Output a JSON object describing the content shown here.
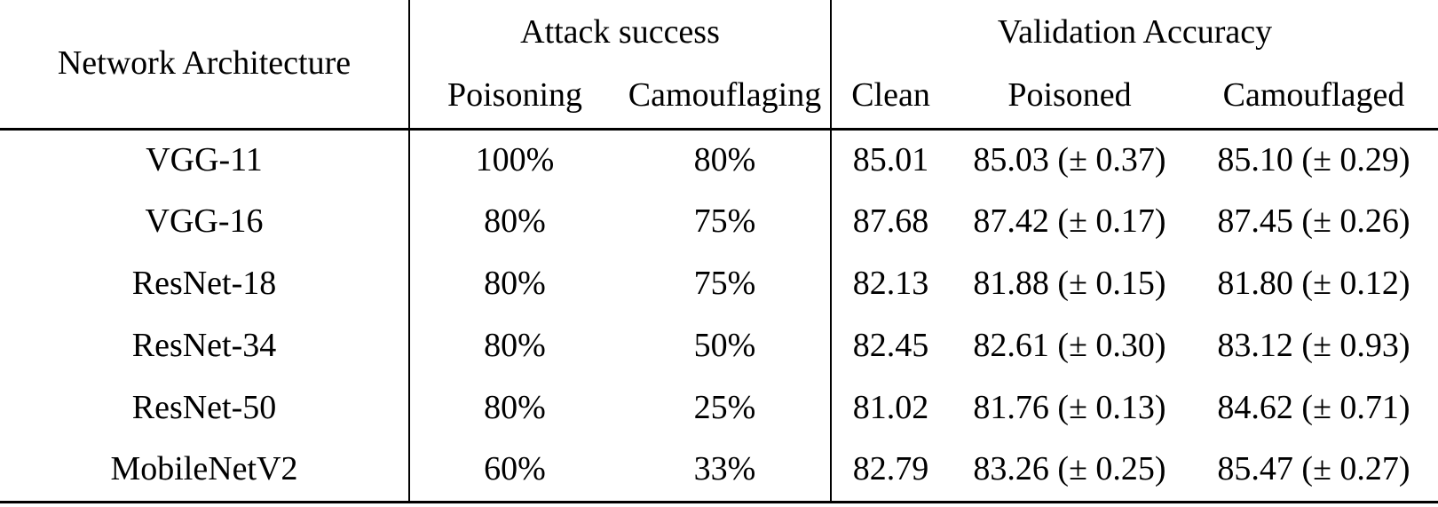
{
  "page": {
    "background": "#ffffff",
    "text_color": "#000000",
    "rule_color": "#000000"
  },
  "table": {
    "header": {
      "architecture": "Network Architecture",
      "attack_group": "Attack success",
      "validation_group": "Validation Accuracy",
      "sub": {
        "poisoning": "Poisoning",
        "camouflaging": "Camouflaging",
        "clean": "Clean",
        "poisoned": "Poisoned",
        "camouflaged": "Camouflaged"
      }
    },
    "rows": [
      {
        "architecture": "VGG-11",
        "poisoning": "100%",
        "camouflaging": "80%",
        "clean": "85.01",
        "poisoned": "85.03 (± 0.37)",
        "camouflaged": "85.10 (± 0.29)"
      },
      {
        "architecture": "VGG-16",
        "poisoning": "80%",
        "camouflaging": "75%",
        "clean": "87.68",
        "poisoned": "87.42 (± 0.17)",
        "camouflaged": "87.45 (± 0.26)"
      },
      {
        "architecture": "ResNet-18",
        "poisoning": "80%",
        "camouflaging": "75%",
        "clean": "82.13",
        "poisoned": "81.88 (± 0.15)",
        "camouflaged": "81.80 (± 0.12)"
      },
      {
        "architecture": "ResNet-34",
        "poisoning": "80%",
        "camouflaging": "50%",
        "clean": "82.45",
        "poisoned": "82.61 (± 0.30)",
        "camouflaged": "83.12 (± 0.93)"
      },
      {
        "architecture": "ResNet-50",
        "poisoning": "80%",
        "camouflaging": "25%",
        "clean": "81.02",
        "poisoned": "81.76 (± 0.13)",
        "camouflaged": "84.62 (± 0.71)"
      },
      {
        "architecture": "MobileNetV2",
        "poisoning": "60%",
        "camouflaging": "33%",
        "clean": "82.79",
        "poisoned": "83.26 (± 0.25)",
        "camouflaged": "85.47 (± 0.27)"
      }
    ]
  },
  "chart_data": {
    "type": "table",
    "columns": [
      "Network Architecture",
      "Attack success: Poisoning",
      "Attack success: Camouflaging",
      "Validation Accuracy: Clean",
      "Validation Accuracy: Poisoned",
      "Validation Accuracy: Camouflaged"
    ],
    "rows": [
      [
        "VGG-11",
        "100%",
        "80%",
        85.01,
        "85.03 (± 0.37)",
        "85.10 (± 0.29)"
      ],
      [
        "VGG-16",
        "80%",
        "75%",
        87.68,
        "87.42 (± 0.17)",
        "87.45 (± 0.26)"
      ],
      [
        "ResNet-18",
        "80%",
        "75%",
        82.13,
        "81.88 (± 0.15)",
        "81.80 (± 0.12)"
      ],
      [
        "ResNet-34",
        "80%",
        "50%",
        82.45,
        "82.61 (± 0.30)",
        "83.12 (± 0.93)"
      ],
      [
        "ResNet-50",
        "80%",
        "25%",
        81.02,
        "81.76 (± 0.13)",
        "84.62 (± 0.71)"
      ],
      [
        "MobileNetV2",
        "60%",
        "33%",
        82.79,
        "83.26 (± 0.25)",
        "85.47 (± 0.27)"
      ]
    ]
  }
}
